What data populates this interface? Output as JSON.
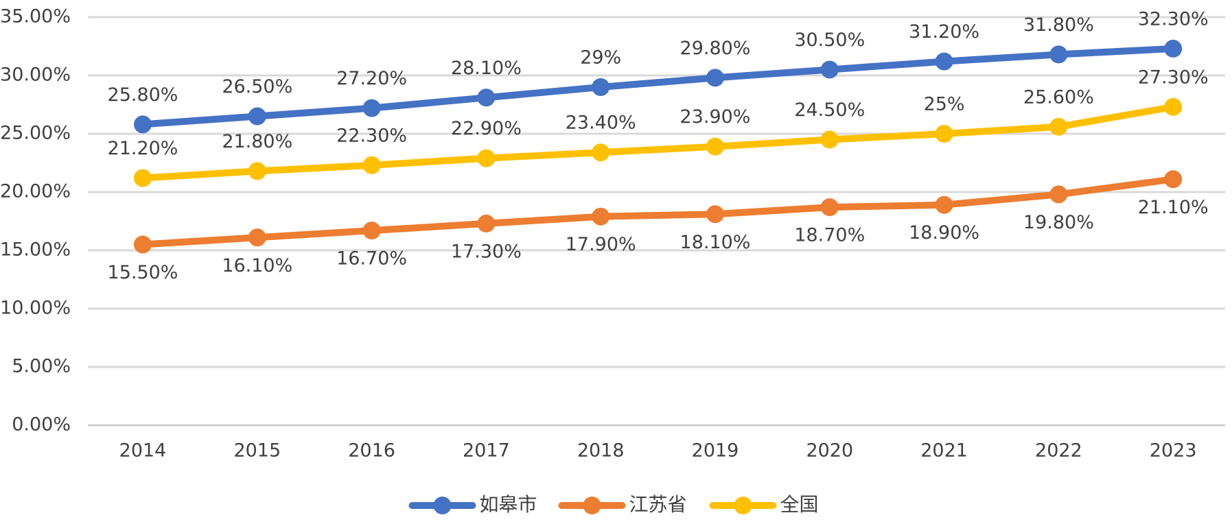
{
  "chart_data": {
    "type": "line",
    "title": "",
    "xlabel": "",
    "ylabel": "",
    "categories": [
      "2014",
      "2015",
      "2016",
      "2017",
      "2018",
      "2019",
      "2020",
      "2021",
      "2022",
      "2023"
    ],
    "ylim": [
      0,
      35
    ],
    "y_ticks": [
      0,
      5,
      10,
      15,
      20,
      25,
      30,
      35
    ],
    "y_tick_labels": [
      "0.00%",
      "5.00%",
      "10.00%",
      "15.00%",
      "20.00%",
      "25.00%",
      "30.00%",
      "35.00%"
    ],
    "grid": true,
    "legend_position": "bottom",
    "series": [
      {
        "name": "如皋市",
        "color": "#4472C4",
        "values": [
          25.8,
          26.5,
          27.2,
          28.1,
          29.0,
          29.8,
          30.5,
          31.2,
          31.8,
          32.3
        ],
        "labels": [
          "25.80%",
          "26.50%",
          "27.20%",
          "28.10%",
          "29%",
          "29.80%",
          "30.50%",
          "31.20%",
          "31.80%",
          "32.30%"
        ],
        "label_position": "above"
      },
      {
        "name": "江苏省",
        "color": "#ED7D31",
        "values": [
          15.5,
          16.1,
          16.7,
          17.3,
          17.9,
          18.1,
          18.7,
          18.9,
          19.8,
          21.1
        ],
        "labels": [
          "15.50%",
          "16.10%",
          "16.70%",
          "17.30%",
          "17.90%",
          "18.10%",
          "18.70%",
          "18.90%",
          "19.80%",
          "21.10%"
        ],
        "label_position": "below"
      },
      {
        "name": "全国",
        "color": "#FFC000",
        "values": [
          21.2,
          21.8,
          22.3,
          22.9,
          23.4,
          23.9,
          24.5,
          25.0,
          25.6,
          27.3
        ],
        "labels": [
          "21.20%",
          "21.80%",
          "22.30%",
          "22.90%",
          "23.40%",
          "23.90%",
          "24.50%",
          "25%",
          "25.60%",
          "27.30%"
        ],
        "label_position": "above"
      }
    ]
  }
}
